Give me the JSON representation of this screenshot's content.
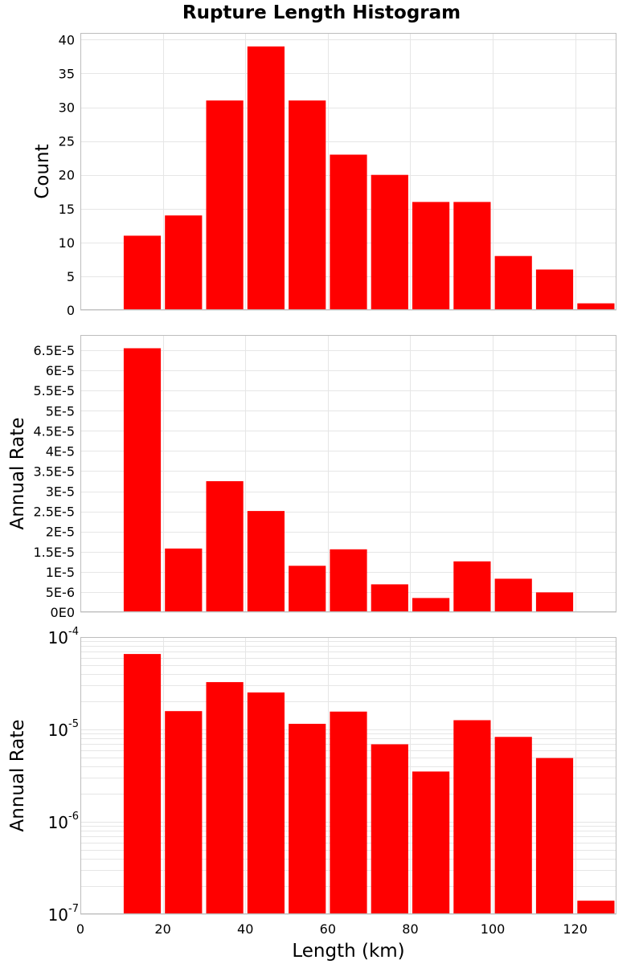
{
  "title": "Rupture Length Histogram",
  "colors": {
    "bar": "#ff0000",
    "grid": "#e6e6e6",
    "frame": "#bdbdbd",
    "background": "#ffffff"
  },
  "chart_data": [
    {
      "type": "bar",
      "ylabel": "Count",
      "xlim": [
        0,
        130
      ],
      "ylim": [
        0,
        41
      ],
      "yticks": [
        0,
        5,
        10,
        15,
        20,
        25,
        30,
        35,
        40
      ],
      "ytick_labels": [
        "0",
        "5",
        "10",
        "15",
        "20",
        "25",
        "30",
        "35",
        "40"
      ],
      "x": [
        15,
        25,
        35,
        45,
        55,
        65,
        75,
        85,
        95,
        105,
        115,
        125
      ],
      "values": [
        11,
        14,
        31,
        39,
        31,
        23,
        20,
        16,
        16,
        8,
        6,
        1
      ],
      "grid": true
    },
    {
      "type": "bar",
      "ylabel": "Annual Rate",
      "xlim": [
        0,
        130
      ],
      "ylim": [
        0,
        6.88e-05
      ],
      "yticks": [
        0,
        5e-06,
        1e-05,
        1.5e-05,
        2e-05,
        2.5e-05,
        3e-05,
        3.5e-05,
        4e-05,
        4.5e-05,
        5e-05,
        5.5e-05,
        6e-05,
        6.5e-05
      ],
      "ytick_labels": [
        "0E0",
        "5E-6",
        "1E-5",
        "1.5E-5",
        "2E-5",
        "2.5E-5",
        "3E-5",
        "3.5E-5",
        "4E-5",
        "4.5E-5",
        "5E-5",
        "5.5E-5",
        "6E-5",
        "6.5E-5"
      ],
      "x": [
        15,
        25,
        35,
        45,
        55,
        65,
        75,
        85,
        95,
        105,
        115,
        125
      ],
      "values": [
        6.55e-05,
        1.58e-05,
        3.25e-05,
        2.51e-05,
        1.15e-05,
        1.56e-05,
        6.9e-06,
        3.5e-06,
        1.26e-05,
        8.3e-06,
        4.9e-06,
        1.4e-07
      ],
      "grid": true
    },
    {
      "type": "bar",
      "ylabel": "Annual Rate",
      "xlabel": "Length (km)",
      "xlim": [
        0,
        130
      ],
      "xticks": [
        0,
        20,
        40,
        60,
        80,
        100,
        120
      ],
      "xtick_labels": [
        "0",
        "20",
        "40",
        "60",
        "80",
        "100",
        "120"
      ],
      "yscale": "log",
      "ylim": [
        1e-07,
        0.0001
      ],
      "yticks": [
        1e-07,
        1e-06,
        1e-05,
        0.0001
      ],
      "ytick_labels": [
        {
          "base": "10",
          "exp": "-7"
        },
        {
          "base": "10",
          "exp": "-6"
        },
        {
          "base": "10",
          "exp": "-5"
        },
        {
          "base": "10",
          "exp": "-4"
        }
      ],
      "x": [
        15,
        25,
        35,
        45,
        55,
        65,
        75,
        85,
        95,
        105,
        115,
        125
      ],
      "values": [
        6.55e-05,
        1.58e-05,
        3.25e-05,
        2.51e-05,
        1.15e-05,
        1.56e-05,
        6.9e-06,
        3.5e-06,
        1.26e-05,
        8.3e-06,
        4.9e-06,
        1.4e-07
      ],
      "grid": true
    }
  ]
}
